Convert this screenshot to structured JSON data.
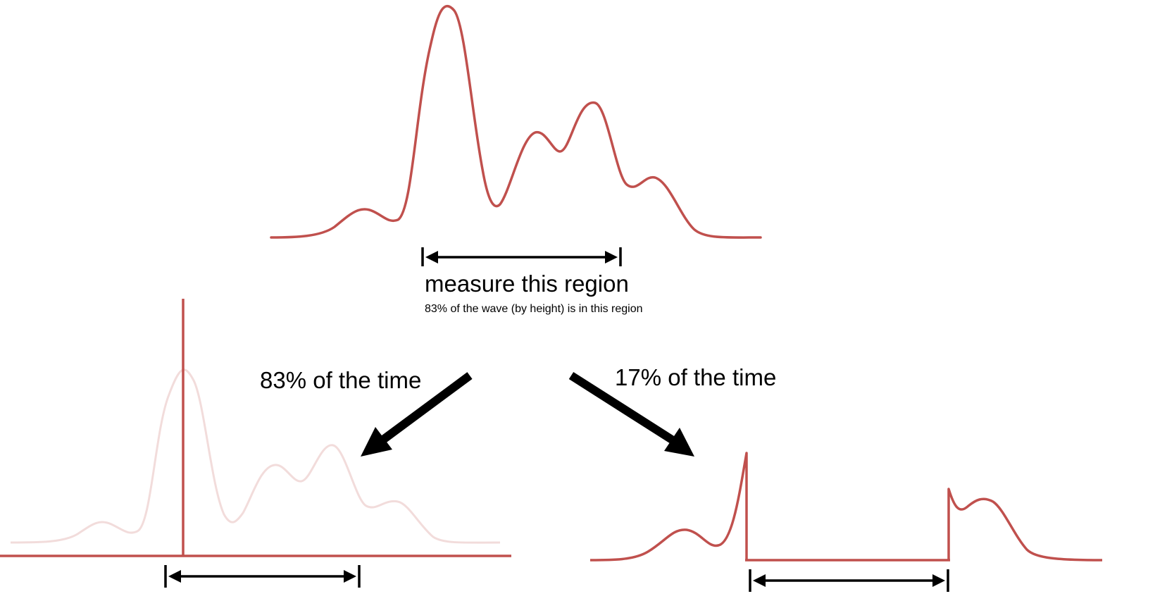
{
  "labels": {
    "measure": "measure this region",
    "measure_note": "83% of the wave (by height) is in this region",
    "left_branch": "83% of the time",
    "right_branch": "17% of the time"
  },
  "colors": {
    "wave": "#c0504d",
    "faded_wave": "#f2dcdb",
    "arrow": "#000000",
    "background": "#ffffff"
  }
}
